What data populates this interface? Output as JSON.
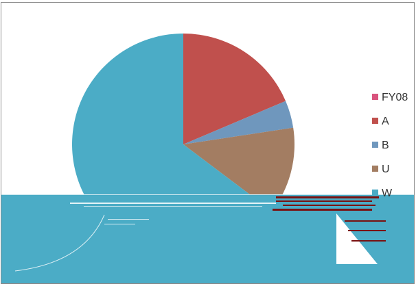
{
  "chart_data": {
    "type": "pie",
    "legend_title": "FY08",
    "legend_title_color": "#d9537d",
    "legend_placement": "right",
    "slices": [
      {
        "label": "A",
        "value": 18.6,
        "color": "#c0504d"
      },
      {
        "label": "B",
        "value": 4.0,
        "color": "#6f97bd"
      },
      {
        "label": "U",
        "value": 12.7,
        "color": "#a37d62"
      },
      {
        "label": "W",
        "value": 64.7,
        "color": "#4bacc6"
      }
    ]
  }
}
